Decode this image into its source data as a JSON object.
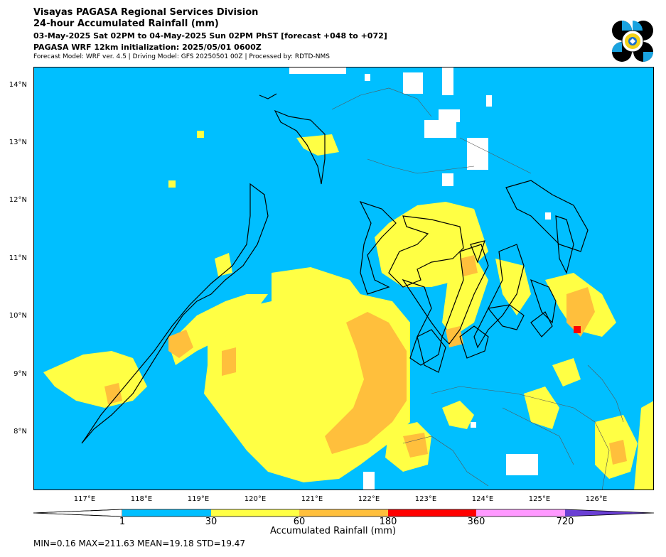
{
  "header": {
    "line1": "Visayas PAGASA Regional Services Division",
    "line2": "24-hour Accumulated Rainfall (mm)",
    "line3": "03-May-2025 Sat 02PM to 04-May-2025 Sun 02PM PhST [forecast +048 to +072]",
    "line4": "PAGASA WRF 12km initialization: 2025/05/01 0600Z",
    "line5": "Forecast Model: WRF ver. 4.5 | Driving Model: GFS 20250501 00Z | Processed by: RDTD-NMS"
  },
  "map": {
    "lat_labels": [
      "14°N",
      "13°N",
      "12°N",
      "11°N",
      "10°N",
      "9°N",
      "8°N"
    ],
    "lon_labels": [
      "117°E",
      "118°E",
      "119°E",
      "120°E",
      "121°E",
      "122°E",
      "123°E",
      "124°E",
      "125°E",
      "126°E"
    ],
    "max_marker": "max rainfall cell near 126°E, 9.8°N"
  },
  "colorbar": {
    "title": "Accumulated Rainfall (mm)",
    "ticks": [
      "1",
      "30",
      "60",
      "180",
      "360",
      "720"
    ],
    "colors": {
      "below": "#ffffff",
      "c1": "#00bfff",
      "c2": "#ffff44",
      "c3": "#ffbf3c",
      "c4": "#ff0000",
      "c5": "#ff99ff",
      "above": "#6a3fd4"
    }
  },
  "stats": {
    "text": "MIN=0.16   MAX=211.63   MEAN=19.18   STD=19.47"
  }
}
